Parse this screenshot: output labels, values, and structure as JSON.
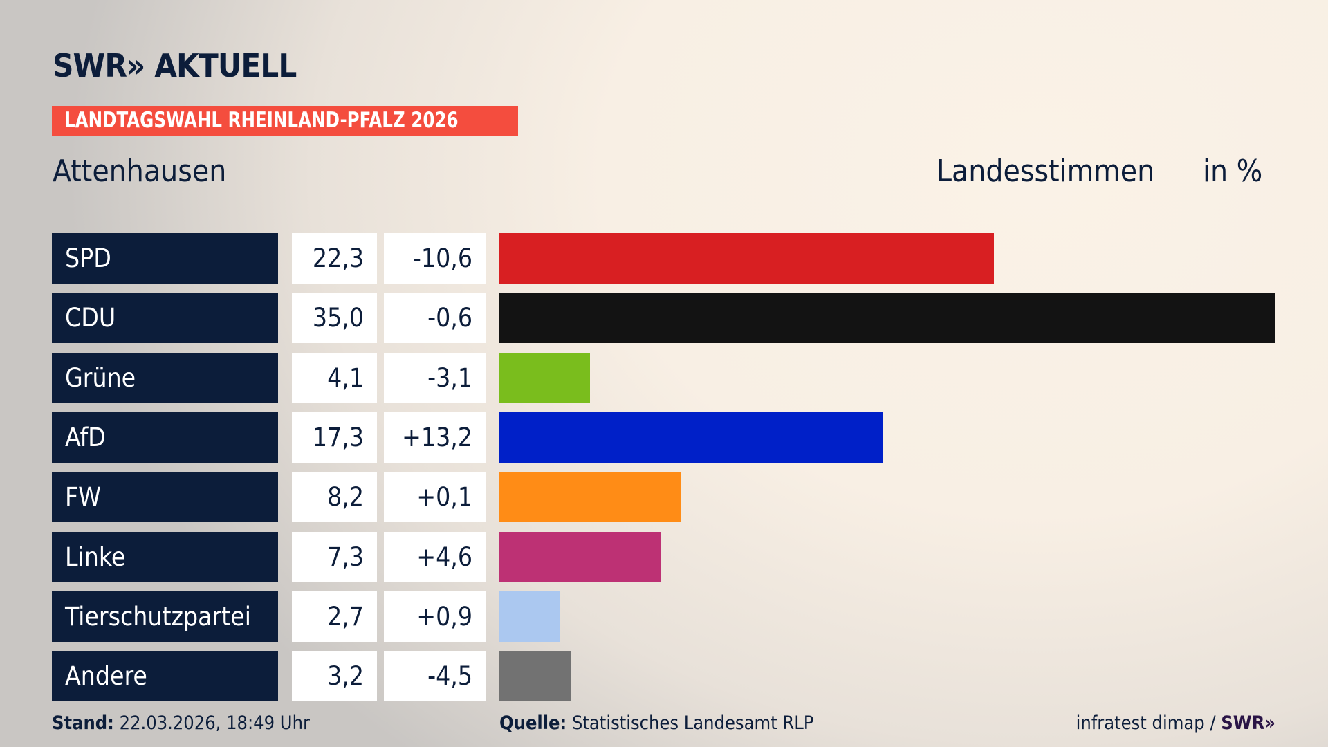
{
  "header": {
    "logo": "SWR» AKTUELL",
    "banner": "LANDTAGSWAHL RHEINLAND-PFALZ 2026",
    "place": "Attenhausen",
    "measure": "Landesstimmen",
    "unit": "in %"
  },
  "chart_data": {
    "type": "bar",
    "orientation": "horizontal",
    "title": "Attenhausen",
    "ylabel": "Landesstimmen in %",
    "categories": [
      "SPD",
      "CDU",
      "Grüne",
      "AfD",
      "FW",
      "Linke",
      "Tierschutzpartei",
      "Andere"
    ],
    "values": [
      22.3,
      35.0,
      4.1,
      17.3,
      8.2,
      7.3,
      2.7,
      3.2
    ],
    "value_labels": [
      "22,3",
      "35,0",
      "4,1",
      "17,3",
      "8,2",
      "7,3",
      "2,7",
      "3,2"
    ],
    "diff_labels": [
      "-10,6",
      "-0,6",
      "-3,1",
      "+13,2",
      "+0,1",
      "+4,6",
      "+0,9",
      "-4,5"
    ],
    "colors": [
      "#d81f22",
      "#131313",
      "#7abd1d",
      "#0020c8",
      "#ff8c16",
      "#bd3174",
      "#abc8f0",
      "#727272"
    ],
    "xlim": [
      0,
      35
    ],
    "grid": false
  },
  "footer": {
    "stand_label": "Stand:",
    "stand_value": "22.03.2026, 18:49 Uhr",
    "source_label": "Quelle:",
    "source_value": "Statistisches Landesamt RLP",
    "credit": "infratest dimap /",
    "credit_logo": "SWR»"
  }
}
